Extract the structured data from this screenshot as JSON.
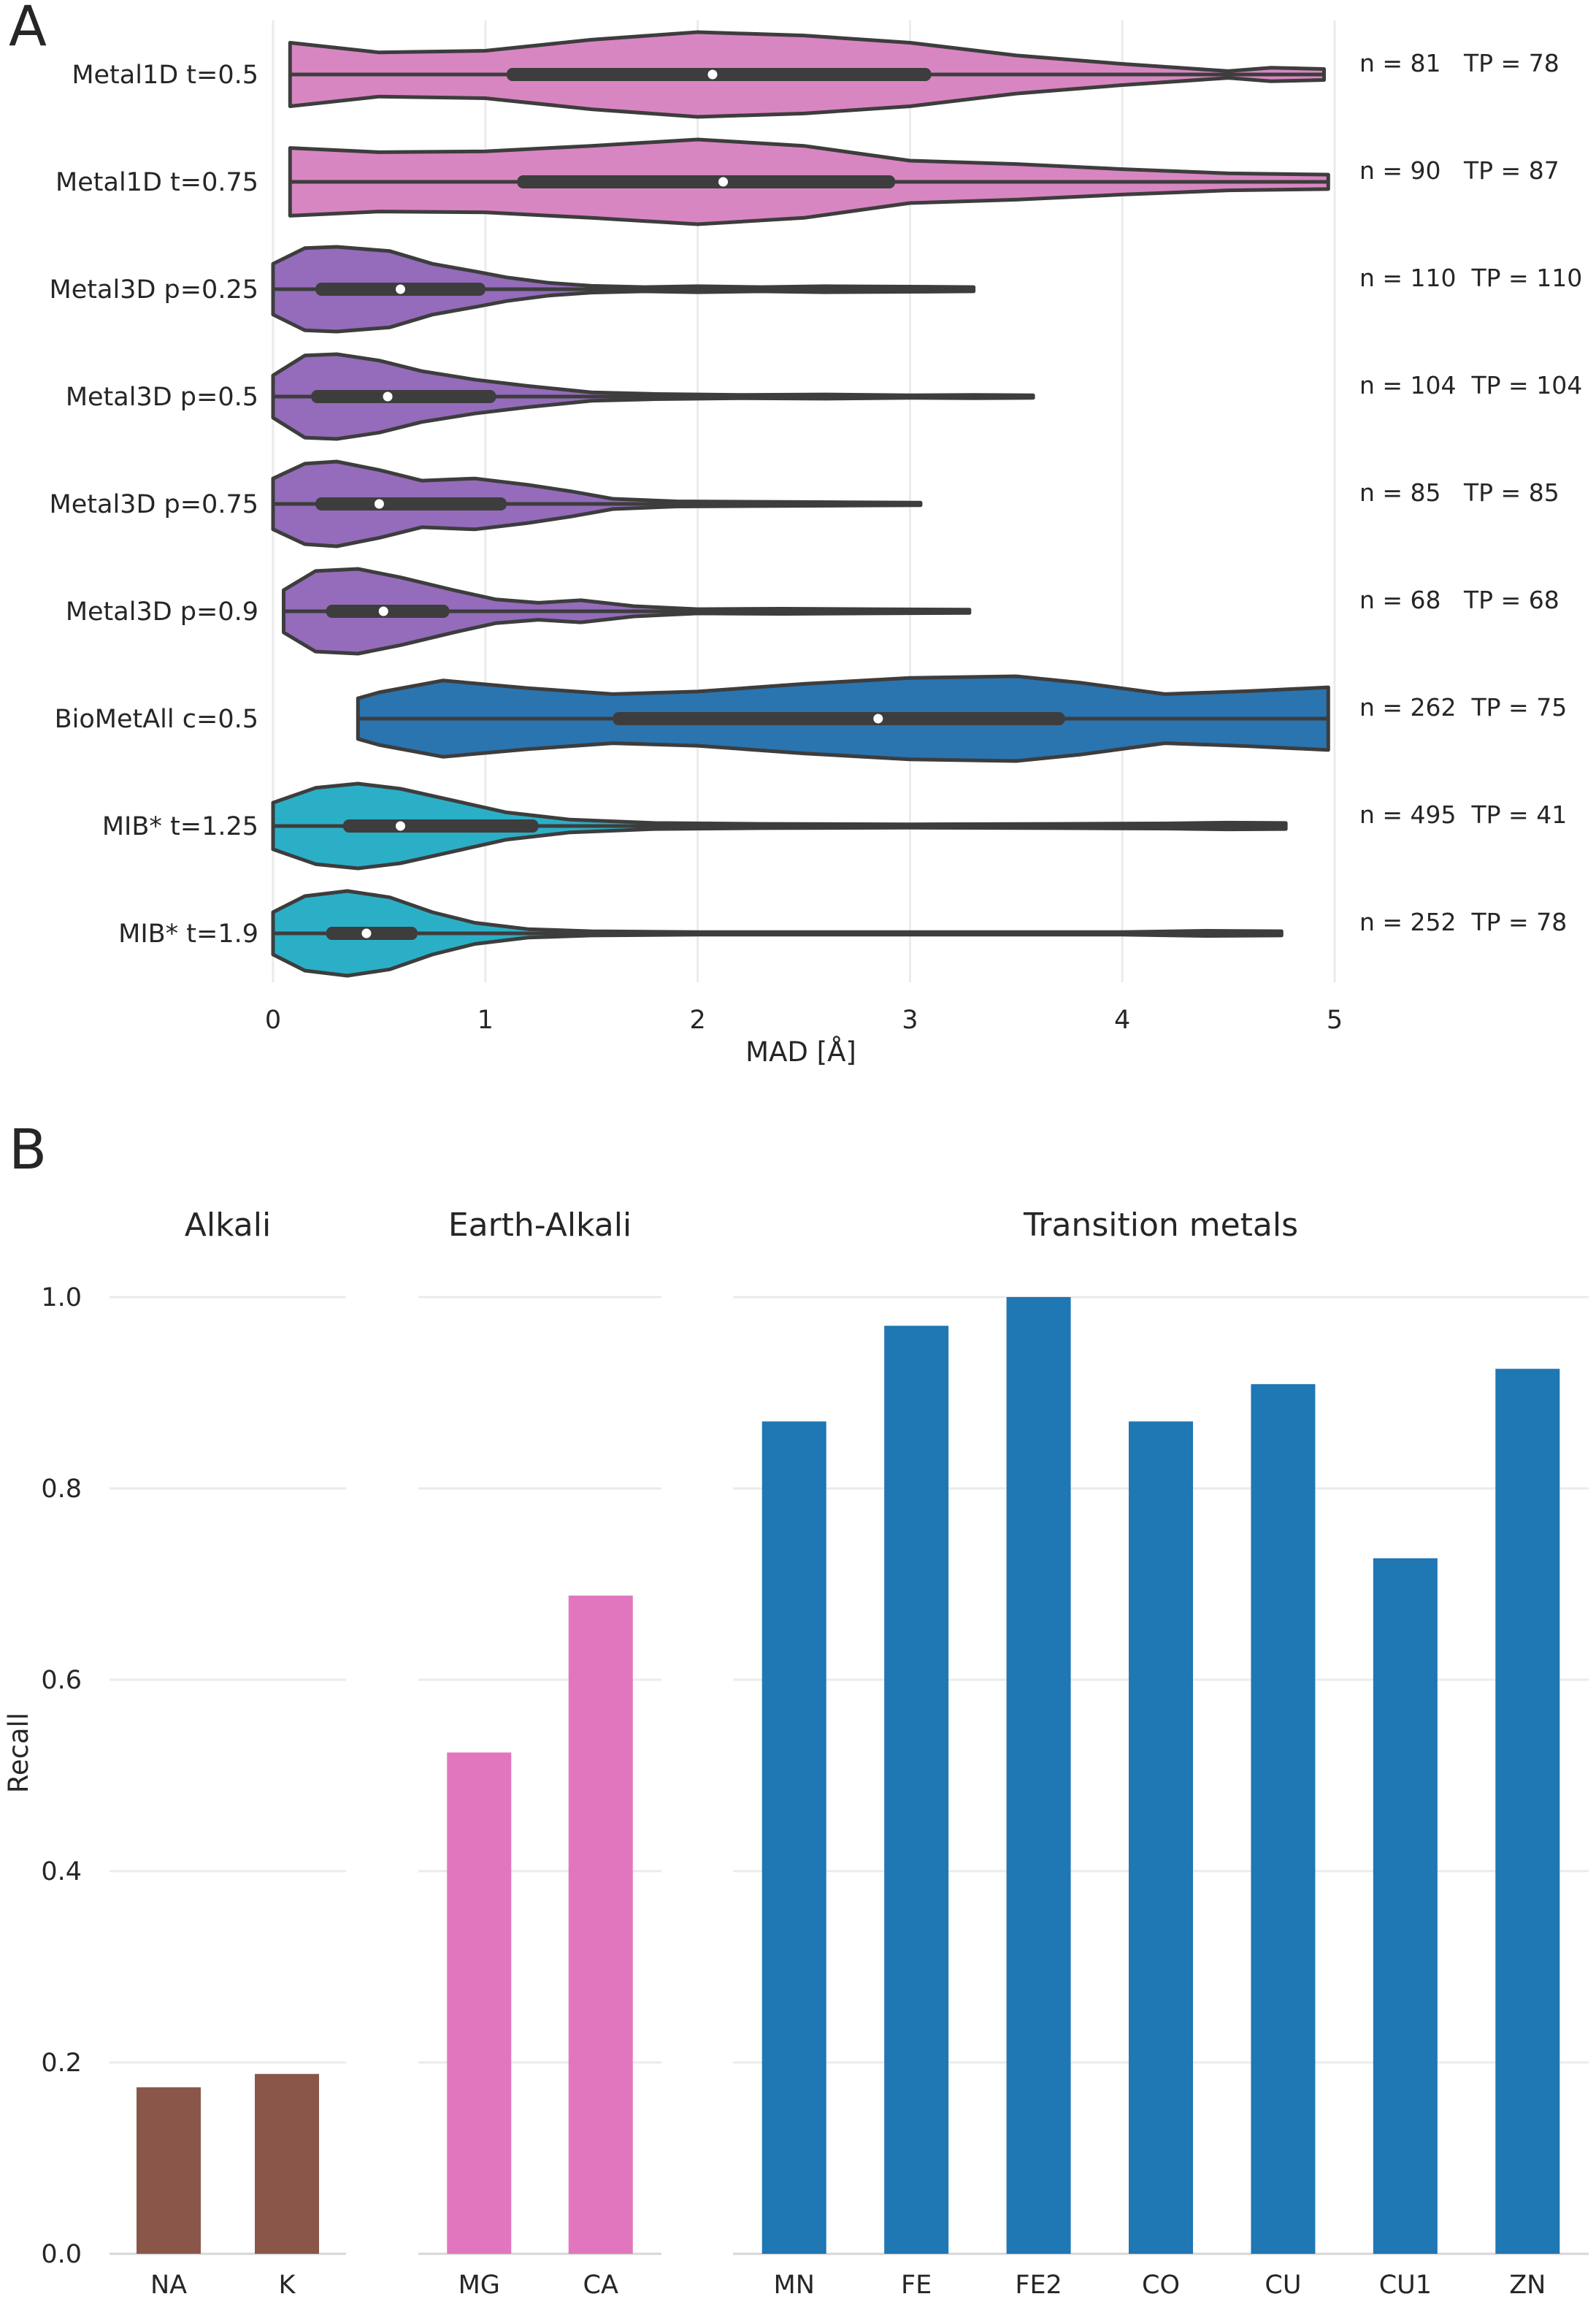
{
  "panel_a_label": "A",
  "panel_b_label": "B",
  "chart_data": [
    {
      "type": "violin",
      "orientation": "horizontal",
      "xlabel": "MAD [Å]",
      "xlim": [
        0,
        5
      ],
      "xticks": [
        "0",
        "1",
        "2",
        "3",
        "4",
        "5"
      ],
      "grid": "vertical",
      "categories": [
        "Metal1D t=0.5",
        "Metal1D t=0.75",
        "Metal3D p=0.25",
        "Metal3D p=0.5",
        "Metal3D p=0.75",
        "Metal3D p=0.9",
        "BioMetAll c=0.5",
        "MIB* t=1.25",
        "MIB* t=1.9"
      ],
      "colors": [
        "#d886c1",
        "#d886c1",
        "#946cbb",
        "#946cbb",
        "#946cbb",
        "#946cbb",
        "#2a74b0",
        "#2bafc7",
        "#2bafc7"
      ],
      "annotations": [
        "n = 81   TP = 78",
        "n = 90   TP = 87",
        "n = 110  TP = 110",
        "n = 104  TP = 104",
        "n = 85   TP = 85",
        "n = 68   TP = 68",
        "n = 262  TP = 75",
        "n = 495  TP = 41",
        "n = 252  TP = 78"
      ],
      "series": [
        {
          "min": 0.08,
          "q1": 1.1,
          "median": 2.07,
          "q3": 3.1,
          "max": 4.95,
          "density_x": [
            0.08,
            0.5,
            1.0,
            1.5,
            2.0,
            2.5,
            3.0,
            3.5,
            4.0,
            4.5,
            4.7,
            4.95
          ],
          "density_w": [
            0.75,
            0.52,
            0.56,
            0.82,
            1.0,
            0.92,
            0.75,
            0.45,
            0.25,
            0.08,
            0.16,
            0.13
          ]
        },
        {
          "min": 0.08,
          "q1": 1.15,
          "median": 2.12,
          "q3": 2.93,
          "max": 4.97,
          "density_x": [
            0.08,
            0.5,
            1.0,
            1.5,
            2.0,
            2.5,
            3.0,
            3.5,
            4.0,
            4.5,
            4.97
          ],
          "density_w": [
            0.8,
            0.7,
            0.72,
            0.85,
            1.0,
            0.85,
            0.5,
            0.42,
            0.3,
            0.2,
            0.17
          ]
        },
        {
          "min": 0.0,
          "q1": 0.2,
          "median": 0.6,
          "q3": 1.0,
          "max": 3.3,
          "density_x": [
            0.0,
            0.15,
            0.3,
            0.55,
            0.75,
            0.95,
            1.1,
            1.3,
            1.5,
            1.75,
            2.0,
            2.3,
            2.6,
            3.0,
            3.3
          ],
          "density_w": [
            0.6,
            0.97,
            1.0,
            0.9,
            0.6,
            0.42,
            0.28,
            0.15,
            0.08,
            0.05,
            0.07,
            0.05,
            0.07,
            0.06,
            0.05
          ]
        },
        {
          "min": 0.0,
          "q1": 0.18,
          "median": 0.54,
          "q3": 1.05,
          "max": 3.58,
          "density_x": [
            0.0,
            0.15,
            0.3,
            0.5,
            0.7,
            0.95,
            1.2,
            1.5,
            1.8,
            2.2,
            2.6,
            3.0,
            3.3,
            3.58
          ],
          "density_w": [
            0.5,
            0.97,
            1.0,
            0.85,
            0.6,
            0.4,
            0.25,
            0.1,
            0.06,
            0.04,
            0.05,
            0.03,
            0.04,
            0.03
          ]
        },
        {
          "min": 0.0,
          "q1": 0.2,
          "median": 0.5,
          "q3": 1.1,
          "max": 3.05,
          "density_x": [
            0.0,
            0.15,
            0.3,
            0.5,
            0.7,
            0.95,
            1.2,
            1.4,
            1.6,
            1.9,
            2.3,
            2.7,
            3.05
          ],
          "density_w": [
            0.6,
            0.95,
            1.0,
            0.8,
            0.55,
            0.6,
            0.45,
            0.3,
            0.12,
            0.06,
            0.05,
            0.04,
            0.03
          ]
        },
        {
          "min": 0.05,
          "q1": 0.25,
          "median": 0.52,
          "q3": 0.83,
          "max": 3.28,
          "density_x": [
            0.05,
            0.2,
            0.4,
            0.6,
            0.85,
            1.05,
            1.25,
            1.45,
            1.7,
            2.0,
            2.4,
            2.8,
            3.28
          ],
          "density_w": [
            0.5,
            0.95,
            1.0,
            0.8,
            0.5,
            0.28,
            0.2,
            0.26,
            0.12,
            0.05,
            0.06,
            0.05,
            0.04
          ]
        },
        {
          "min": 0.4,
          "q1": 1.6,
          "median": 2.85,
          "q3": 3.73,
          "max": 4.97,
          "density_x": [
            0.4,
            0.5,
            0.8,
            1.2,
            1.6,
            2.0,
            2.5,
            3.0,
            3.5,
            3.8,
            4.2,
            4.6,
            4.97
          ],
          "density_w": [
            0.48,
            0.62,
            0.9,
            0.72,
            0.58,
            0.64,
            0.82,
            0.96,
            1.0,
            0.85,
            0.58,
            0.65,
            0.74
          ]
        },
        {
          "min": 0.0,
          "q1": 0.33,
          "median": 0.6,
          "q3": 1.25,
          "max": 4.77,
          "density_x": [
            0.0,
            0.2,
            0.4,
            0.6,
            0.85,
            1.1,
            1.4,
            1.8,
            2.3,
            3.0,
            3.7,
            4.2,
            4.5,
            4.77
          ],
          "density_w": [
            0.55,
            0.9,
            1.0,
            0.88,
            0.6,
            0.32,
            0.15,
            0.07,
            0.05,
            0.04,
            0.05,
            0.06,
            0.08,
            0.07
          ]
        },
        {
          "min": 0.0,
          "q1": 0.25,
          "median": 0.44,
          "q3": 0.68,
          "max": 4.75,
          "density_x": [
            0.0,
            0.15,
            0.35,
            0.55,
            0.75,
            0.95,
            1.2,
            1.5,
            2.0,
            3.0,
            4.0,
            4.4,
            4.75
          ],
          "density_w": [
            0.5,
            0.88,
            1.0,
            0.85,
            0.5,
            0.25,
            0.1,
            0.05,
            0.03,
            0.03,
            0.03,
            0.06,
            0.05
          ]
        }
      ]
    },
    {
      "type": "bar",
      "ylabel": "Recall",
      "ylim": [
        0,
        1
      ],
      "yticks": [
        "0.0",
        "0.2",
        "0.4",
        "0.6",
        "0.8",
        "1.0"
      ],
      "grid": "horizontal",
      "groups": [
        {
          "title": "Alkali",
          "color": "#8b564a",
          "categories": [
            "NA",
            "K"
          ],
          "values": [
            0.174,
            0.188
          ]
        },
        {
          "title": "Earth-Alkali",
          "color": "#e276be",
          "categories": [
            "MG",
            "CA"
          ],
          "values": [
            0.524,
            0.688
          ]
        },
        {
          "title": "Transition metals",
          "color": "#1f77b4",
          "categories": [
            "MN",
            "FE",
            "FE2",
            "CO",
            "CU",
            "CU1",
            "ZN"
          ],
          "values": [
            0.87,
            0.97,
            1.0,
            0.87,
            0.909,
            0.727,
            0.925
          ]
        }
      ]
    }
  ]
}
